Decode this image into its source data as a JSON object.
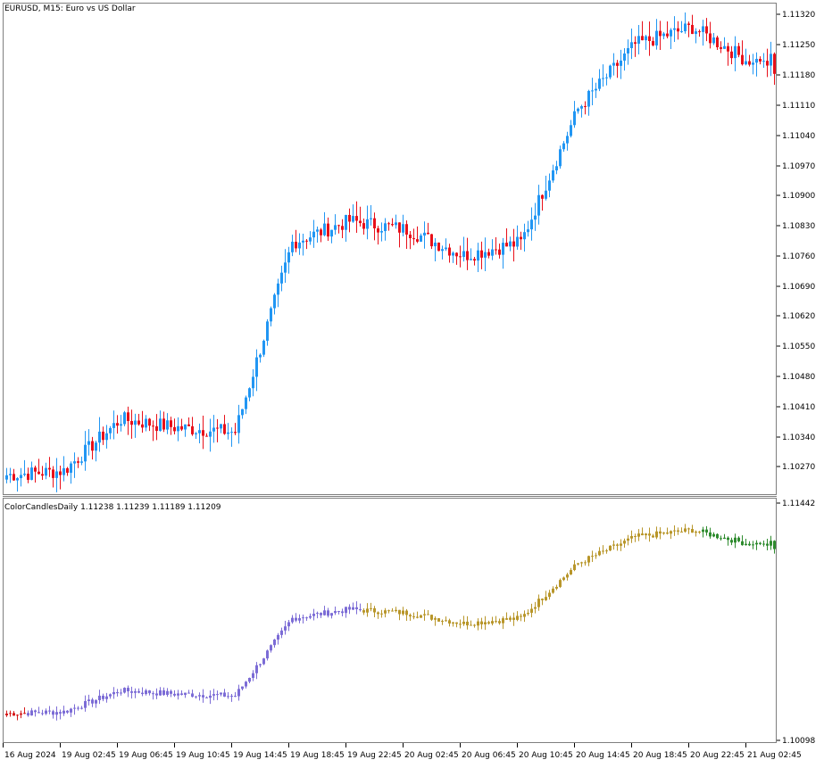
{
  "main_panel": {
    "title": "EURUSD, M15:  Euro vs US Dollar",
    "price_ticks": [
      "1.11320",
      "1.11250",
      "1.11180",
      "1.11110",
      "1.11040",
      "1.10970",
      "1.10900",
      "1.10830",
      "1.10760",
      "1.10690",
      "1.10620",
      "1.10550",
      "1.10480",
      "1.10410",
      "1.10340",
      "1.10270"
    ]
  },
  "indicator_panel": {
    "title": "ColorCandlesDaily 1.11238 1.11239 1.11189 1.11209",
    "scale_ticks": [
      "1.11442",
      "1.10098"
    ]
  },
  "time_axis": {
    "labels": [
      "16 Aug 2024",
      "19 Aug 02:45",
      "19 Aug 06:45",
      "19 Aug 10:45",
      "19 Aug 14:45",
      "19 Aug 18:45",
      "19 Aug 22:45",
      "20 Aug 02:45",
      "20 Aug 06:45",
      "20 Aug 10:45",
      "20 Aug 14:45",
      "20 Aug 18:45",
      "20 Aug 22:45",
      "21 Aug 02:45"
    ]
  },
  "colors": {
    "bull": "#2196f3",
    "bear": "#e8101a",
    "day1": "#d51a1a",
    "day2": "#7c6cd6",
    "day3": "#b8962a",
    "day4": "#2e8b2e",
    "frame": "#7f7f7f"
  },
  "chart_data": [
    {
      "type": "candlestick",
      "symbol": "EURUSD",
      "timeframe": "M15",
      "ylim": [
        1.1022,
        1.1134
      ],
      "close_path": [
        {
          "t": "16 Aug 2024",
          "close": 1.1025
        },
        {
          "t": "19 Aug 02:45",
          "close": 1.1026
        },
        {
          "t": "19 Aug 06:45",
          "close": 1.1038
        },
        {
          "t": "19 Aug 10:45",
          "close": 1.1036
        },
        {
          "t": "19 Aug 14:45",
          "close": 1.1035
        },
        {
          "t": "19 Aug 18:45",
          "close": 1.1079
        },
        {
          "t": "19 Aug 22:45",
          "close": 1.1084
        },
        {
          "t": "20 Aug 02:45",
          "close": 1.1082
        },
        {
          "t": "20 Aug 06:45",
          "close": 1.1076
        },
        {
          "t": "20 Aug 10:45",
          "close": 1.1079
        },
        {
          "t": "20 Aug 14:45",
          "close": 1.111
        },
        {
          "t": "20 Aug 18:45",
          "close": 1.1125
        },
        {
          "t": "20 Aug 22:45",
          "close": 1.1129
        },
        {
          "t": "21 Aug 02:45",
          "close": 1.1121
        }
      ]
    },
    {
      "type": "candlestick",
      "indicator": "ColorCandlesDaily",
      "values": {
        "open": 1.11238,
        "high": 1.11239,
        "low": 1.11189,
        "close": 1.11209
      },
      "ylim": [
        1.10098,
        1.11442
      ]
    }
  ]
}
